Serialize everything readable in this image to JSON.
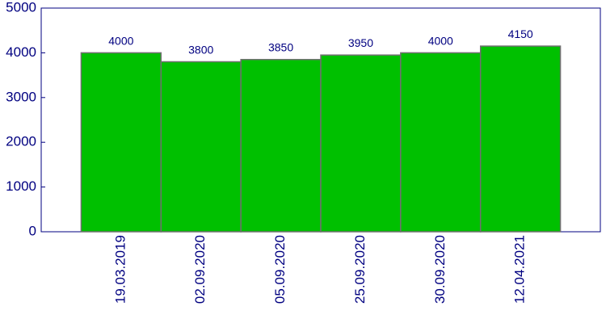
{
  "chart_data": {
    "type": "bar",
    "categories": [
      "19.03.2019",
      "02.09.2020",
      "05.09.2020",
      "25.09.2020",
      "30.09.2020",
      "12.04.2021"
    ],
    "values": [
      4000,
      3800,
      3850,
      3950,
      4000,
      4150
    ],
    "color": "#00c000",
    "ylim": [
      0,
      5000
    ],
    "yticks": [
      0,
      1000,
      2000,
      3000,
      4000,
      5000
    ],
    "grid": false
  }
}
